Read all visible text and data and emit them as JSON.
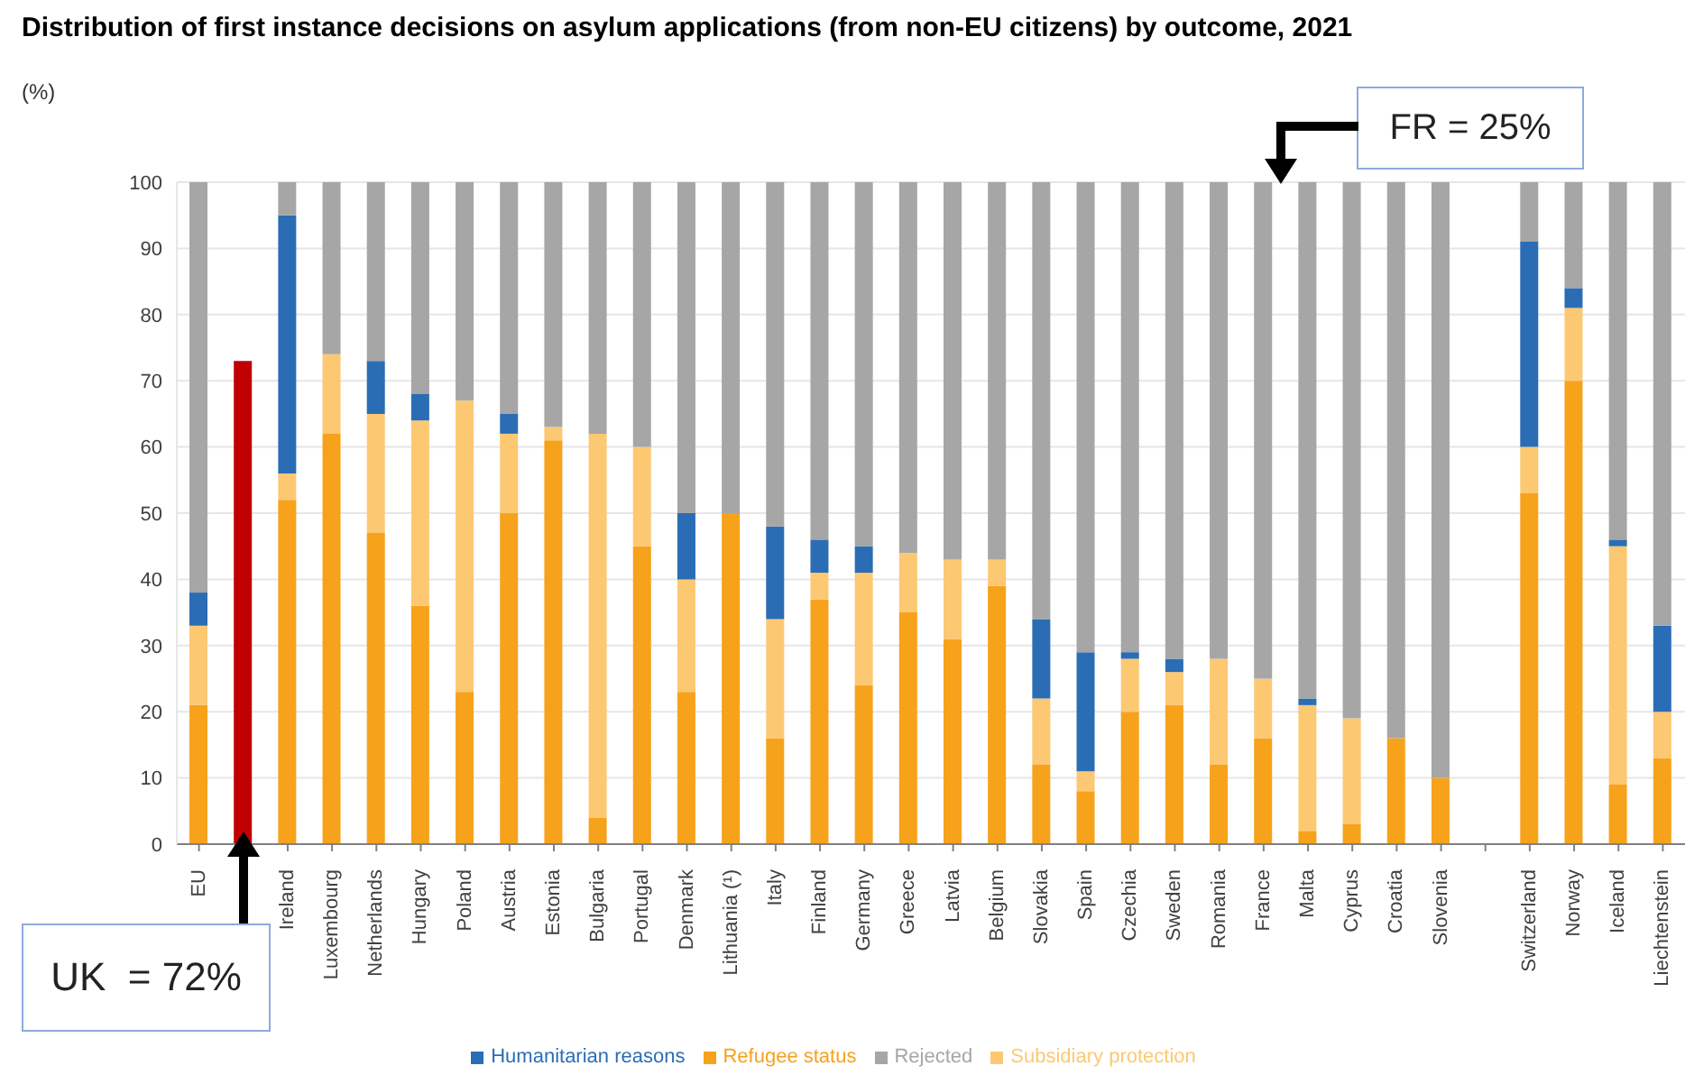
{
  "chart_data": {
    "type": "bar",
    "title": "Distribution of first instance decisions on asylum applications (from non-EU citizens) by outcome, 2021",
    "ylabel": "(%)",
    "categories": [
      "EU",
      null,
      "Ireland",
      "Luxembourg",
      "Netherlands",
      "Hungary",
      "Poland",
      "Austria",
      "Estonia",
      "Bulgaria",
      "Portugal",
      "Denmark",
      "Lithuania (¹)",
      "Italy",
      "Finland",
      "Germany",
      "Greece",
      "Latvia",
      "Belgium",
      "Slovakia",
      "Spain",
      "Czechia",
      "Sweden",
      "Romania",
      "France",
      "Malta",
      "Cyprus",
      "Croatia",
      "Slovenia",
      null,
      "Switzerland",
      "Norway",
      "Iceland",
      "Liechtenstein"
    ],
    "stacked": true,
    "series": [
      {
        "name": "Refugee status",
        "color": "#f7a21b",
        "values": [
          21,
          null,
          52,
          62,
          47,
          36,
          23,
          50,
          61,
          4,
          45,
          23,
          50,
          16,
          37,
          24,
          35,
          31,
          39,
          12,
          8,
          20,
          21,
          12,
          16,
          2,
          3,
          16,
          10,
          null,
          53,
          70,
          9,
          13
        ]
      },
      {
        "name": "Subsidiary protection",
        "color": "#fdc872",
        "values": [
          12,
          null,
          4,
          12,
          18,
          28,
          44,
          12,
          2,
          58,
          15,
          17,
          0,
          18,
          4,
          17,
          9,
          12,
          4,
          10,
          3,
          8,
          5,
          16,
          9,
          19,
          16,
          0,
          0,
          null,
          7,
          11,
          36,
          7
        ]
      },
      {
        "name": "Humanitarian reasons",
        "color": "#2a6db5",
        "values": [
          5,
          null,
          39,
          0,
          8,
          4,
          0,
          3,
          0,
          0,
          0,
          10,
          0,
          14,
          5,
          4,
          0,
          0,
          0,
          12,
          18,
          1,
          2,
          0,
          0,
          1,
          0,
          0,
          0,
          null,
          31,
          3,
          1,
          13
        ]
      },
      {
        "name": "Rejected",
        "color": "#a6a6a6",
        "values": [
          62,
          null,
          5,
          26,
          27,
          32,
          33,
          35,
          37,
          38,
          40,
          50,
          50,
          52,
          54,
          55,
          56,
          57,
          57,
          66,
          71,
          71,
          72,
          72,
          75,
          78,
          81,
          84,
          90,
          null,
          9,
          16,
          54,
          67
        ]
      },
      {
        "color": "#c00000",
        "values": [
          null,
          73,
          null,
          null,
          null,
          null,
          null,
          null,
          null,
          null,
          null,
          null,
          null,
          null,
          null,
          null,
          null,
          null,
          null,
          null,
          null,
          null,
          null,
          null,
          null,
          null,
          null,
          null,
          null,
          null,
          null,
          null,
          null,
          null
        ]
      }
    ],
    "ylim": [
      0,
      100
    ],
    "yticks": [
      0,
      10,
      20,
      30,
      40,
      50,
      60,
      70,
      80,
      90,
      100
    ],
    "grid": "y",
    "legend": "bottom",
    "annotations": [
      "UK  = 72%",
      "FR = 25%"
    ]
  }
}
